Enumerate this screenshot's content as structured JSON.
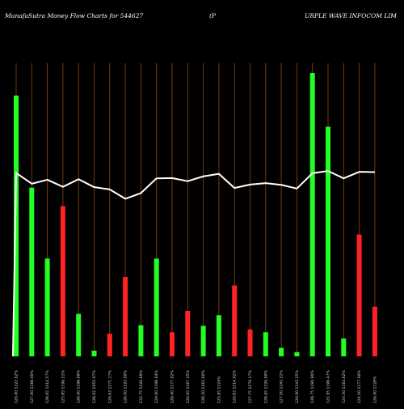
{
  "header": {
    "source": "MunafaSutra  Money Flow  Charts for 544627",
    "company_left": "(P",
    "company_right": "URPLE WAVE INFOCOM LIM"
  },
  "colors": {
    "background": "#000000",
    "gridline": "#8a4a1a",
    "up": "#22ff22",
    "down": "#ff2222",
    "line": "#ffffff"
  },
  "chart_data": {
    "type": "bar",
    "title": "MunafaSutra  Money Flow  Charts for 544627",
    "subtitle": "(PURPLE WAVE INFOCOM LIM",
    "grid": true,
    "categories": [
      "126.00 1222.62%",
      "127.00 1168.00%",
      "128.65 1414.57%",
      "125.85 1196.21%",
      "128.00 1198.99%",
      "128.02 1052.07%",
      "126.63 1271.17%",
      "128.00 1193.00%",
      "132.75 1226.69%",
      "129.00 1198.04%",
      "128.00 1177.02%",
      "126.65 1167.25%",
      "128.30 1263.00%",
      "125.65 1224%",
      "126.83 1214.92%",
      "127.75 1276.17%",
      "128.65 1226.99%",
      "127.00 1145.21%",
      "126.00 1142.25%",
      "128.75 1190.90%",
      "121.95 1196.47%",
      "123.50 1164.62%",
      "124.00 1177.00%",
      "126.00 1128%"
    ],
    "series": [
      {
        "direction": [
          "up",
          "up",
          "up",
          "down",
          "up",
          "up",
          "down",
          "down",
          "up",
          "up",
          "down",
          "down",
          "up",
          "up",
          "down",
          "down",
          "up",
          "up",
          "up",
          "up",
          "up",
          "up",
          "down",
          "down"
        ],
        "values": [
          92,
          59.5,
          34.5,
          53,
          15,
          2,
          8,
          28,
          11,
          34.5,
          8.5,
          16,
          10.8,
          14.5,
          25,
          9.5,
          8.5,
          3,
          1.5,
          100,
          81,
          6.3,
          43,
          17.5
        ]
      }
    ],
    "line_values": [
      64.7,
      60.9,
      62.3,
      59.8,
      62.5,
      59.7,
      58.9,
      55.6,
      57.6,
      62.8,
      62.9,
      61.8,
      63.5,
      64.4,
      59.4,
      60.6,
      61.1,
      60.5,
      59.2,
      64.6,
      65.4,
      62.8,
      65.1,
      65.0
    ],
    "ylim": [
      0,
      100
    ]
  }
}
